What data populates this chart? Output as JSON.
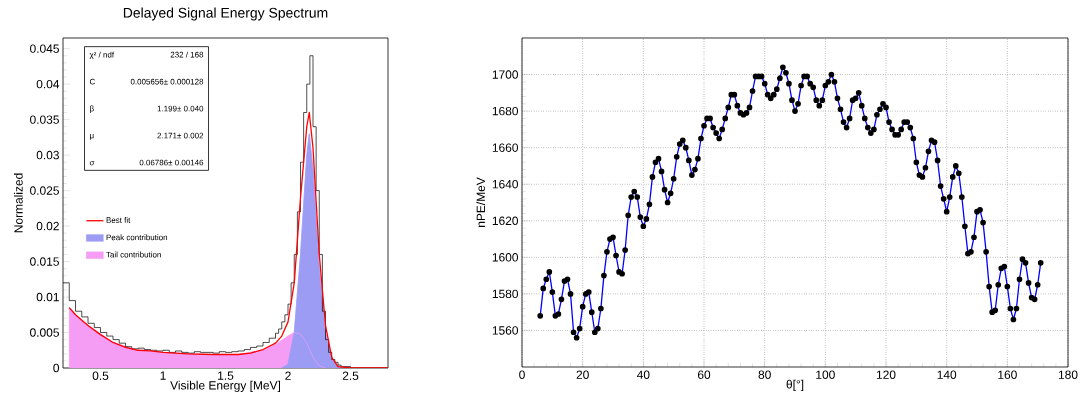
{
  "chart_data": [
    {
      "type": "line",
      "title": "Delayed Signal Energy Spectrum",
      "xlabel": "Visible Energy [MeV]",
      "ylabel": "Normalized",
      "xlim": [
        0.2,
        2.8
      ],
      "ylim": [
        0,
        0.0465
      ],
      "xticks": [
        0.5,
        1,
        1.5,
        2,
        2.5
      ],
      "yticks": [
        0,
        0.005,
        0.01,
        0.015,
        0.02,
        0.025,
        0.03,
        0.035,
        0.04,
        0.045
      ],
      "legend": "left",
      "grid": false,
      "annotations": [
        "χ² / ndf",
        "232 / 168",
        "C",
        "0.005656± 0.000128",
        "β",
        "1.199± 0.040",
        "μ",
        "2.171± 0.002",
        "σ",
        "0.06786± 0.00146"
      ],
      "series": [
        {
          "type": "area",
          "name": "Tail contribution",
          "color": "#f59cf5",
          "x": [
            0.25,
            0.3,
            0.4,
            0.6,
            0.8,
            1.0,
            1.2,
            1.4,
            1.6,
            1.8,
            1.9,
            2.0,
            2.05,
            2.1,
            2.15,
            2.2,
            2.25,
            2.3
          ],
          "values": [
            0.0085,
            0.0075,
            0.006,
            0.0036,
            0.0025,
            0.0022,
            0.002,
            0.0019,
            0.0019,
            0.0025,
            0.0033,
            0.0045,
            0.005,
            0.0048,
            0.0035,
            0.0015,
            0.0003,
            0
          ]
        },
        {
          "type": "area",
          "name": "Peak contribution",
          "color": "#9c9cf5",
          "x": [
            1.95,
            2.0,
            2.05,
            2.1,
            2.15,
            2.17,
            2.2,
            2.25,
            2.3,
            2.35,
            2.4,
            2.45
          ],
          "values": [
            0,
            0.0005,
            0.005,
            0.016,
            0.03,
            0.033,
            0.028,
            0.014,
            0.005,
            0.0012,
            0.0002,
            0
          ]
        },
        {
          "type": "histogram",
          "color": "#000000",
          "bins": [
            0.2,
            0.25,
            0.3,
            0.35,
            0.4,
            0.45,
            0.5,
            0.55,
            0.6,
            0.65,
            0.7,
            0.75,
            0.8,
            0.85,
            0.9,
            0.95,
            1,
            1.05,
            1.1,
            1.15,
            1.2,
            1.25,
            1.3,
            1.35,
            1.4,
            1.45,
            1.5,
            1.55,
            1.6,
            1.65,
            1.7,
            1.75,
            1.8,
            1.85,
            1.9,
            1.925,
            1.95,
            1.975,
            2,
            2.025,
            2.05,
            2.075,
            2.1,
            2.125,
            2.15,
            2.175,
            2.2,
            2.225,
            2.25,
            2.275,
            2.3,
            2.325,
            2.35,
            2.375,
            2.4,
            2.425,
            2.45,
            2.5,
            2.55,
            2.6,
            2.65,
            2.7,
            2.75,
            2.8
          ],
          "values": [
            0.012,
            0.0095,
            0.008,
            0.0072,
            0.0063,
            0.0057,
            0.005,
            0.0045,
            0.004,
            0.0035,
            0.003,
            0.0027,
            0.0028,
            0.0026,
            0.0025,
            0.0024,
            0.0025,
            0.0022,
            0.0024,
            0.0022,
            0.0021,
            0.0023,
            0.0022,
            0.0022,
            0.0021,
            0.0023,
            0.0022,
            0.0023,
            0.0024,
            0.0026,
            0.0029,
            0.0031,
            0.0036,
            0.0042,
            0.0049,
            0.0055,
            0.0065,
            0.0075,
            0.009,
            0.012,
            0.016,
            0.022,
            0.029,
            0.036,
            0.04,
            0.044,
            0.034,
            0.025,
            0.016,
            0.008,
            0.004,
            0.0022,
            0.0012,
            0.0008,
            0.0004,
            0.0002,
            0.0002,
            0,
            0,
            0,
            0,
            0,
            0
          ]
        },
        {
          "type": "line",
          "name": "Best fit",
          "color": "#ff0000",
          "x": [
            0.25,
            0.3,
            0.4,
            0.5,
            0.6,
            0.7,
            0.8,
            0.9,
            1.0,
            1.2,
            1.4,
            1.6,
            1.7,
            1.8,
            1.9,
            1.95,
            2.0,
            2.05,
            2.1,
            2.15,
            2.17,
            2.2,
            2.25,
            2.3,
            2.35,
            2.4,
            2.5,
            2.8
          ],
          "values": [
            0.0085,
            0.0075,
            0.006,
            0.0047,
            0.0036,
            0.0029,
            0.0025,
            0.0024,
            0.0022,
            0.002,
            0.0019,
            0.0019,
            0.0021,
            0.0026,
            0.0035,
            0.0045,
            0.0065,
            0.012,
            0.024,
            0.034,
            0.036,
            0.031,
            0.016,
            0.006,
            0.0015,
            0.0002,
            0,
            0
          ]
        }
      ]
    },
    {
      "type": "line",
      "xlabel": "θ[°]",
      "ylabel": "nPE/MeV",
      "xlim": [
        0,
        180
      ],
      "ylim": [
        1540,
        1720
      ],
      "xticks": [
        0,
        20,
        40,
        60,
        80,
        100,
        120,
        140,
        160,
        180
      ],
      "yticks": [
        1560,
        1580,
        1600,
        1620,
        1640,
        1660,
        1680,
        1700
      ],
      "grid": true,
      "marker": "circle",
      "color": "#0000ff",
      "x": [
        6,
        7,
        8,
        9,
        10,
        11,
        12,
        13,
        14,
        15,
        16,
        17,
        18,
        19,
        20,
        21,
        22,
        23,
        24,
        25,
        26,
        27,
        28,
        29,
        30,
        31,
        32,
        33,
        34,
        35,
        36,
        37,
        38,
        39,
        40,
        41,
        42,
        43,
        44,
        45,
        46,
        47,
        48,
        49,
        50,
        51,
        52,
        53,
        54,
        55,
        56,
        57,
        58,
        59,
        60,
        61,
        62,
        63,
        64,
        65,
        66,
        67,
        68,
        69,
        70,
        71,
        72,
        73,
        74,
        75,
        76,
        77,
        78,
        79,
        80,
        81,
        82,
        83,
        84,
        85,
        86,
        87,
        88,
        89,
        90,
        91,
        92,
        93,
        94,
        95,
        96,
        97,
        98,
        99,
        100,
        101,
        102,
        103,
        104,
        105,
        106,
        107,
        108,
        109,
        110,
        111,
        112,
        113,
        114,
        115,
        116,
        117,
        118,
        119,
        120,
        121,
        122,
        123,
        124,
        125,
        126,
        127,
        128,
        129,
        130,
        131,
        132,
        133,
        134,
        135,
        136,
        137,
        138,
        139,
        140,
        141,
        142,
        143,
        144,
        145,
        146,
        147,
        148,
        149,
        150,
        151,
        152,
        153,
        154,
        155,
        156,
        157,
        158,
        159,
        160,
        161,
        162,
        163,
        164,
        165,
        166,
        167,
        168,
        169,
        170,
        171
      ],
      "values": [
        1568,
        1583,
        1588,
        1592,
        1581,
        1568,
        1569,
        1577,
        1587,
        1588,
        1580,
        1559,
        1556,
        1561,
        1573,
        1580,
        1581,
        1570,
        1559,
        1561,
        1572,
        1590,
        1603,
        1610,
        1611,
        1601,
        1592,
        1591,
        1604,
        1623,
        1633,
        1636,
        1633,
        1622,
        1617,
        1621,
        1629,
        1644,
        1652,
        1654,
        1647,
        1637,
        1630,
        1635,
        1643,
        1655,
        1662,
        1664,
        1660,
        1653,
        1645,
        1648,
        1654,
        1665,
        1672,
        1676,
        1676,
        1671,
        1668,
        1665,
        1670,
        1676,
        1682,
        1689,
        1689,
        1683,
        1679,
        1678,
        1679,
        1682,
        1691,
        1699,
        1699,
        1699,
        1695,
        1689,
        1687,
        1689,
        1692,
        1698,
        1704,
        1701,
        1695,
        1686,
        1680,
        1684,
        1694,
        1699,
        1699,
        1695,
        1693,
        1686,
        1683,
        1686,
        1694,
        1696,
        1700,
        1696,
        1687,
        1681,
        1674,
        1671,
        1676,
        1686,
        1687,
        1690,
        1683,
        1676,
        1671,
        1668,
        1670,
        1678,
        1681,
        1684,
        1682,
        1674,
        1670,
        1667,
        1667,
        1670,
        1674,
        1674,
        1671,
        1665,
        1652,
        1645,
        1644,
        1649,
        1658,
        1664,
        1663,
        1653,
        1639,
        1632,
        1625,
        1633,
        1644,
        1650,
        1646,
        1633,
        1617,
        1602,
        1603,
        1611,
        1625,
        1626,
        1619,
        1603,
        1584,
        1570,
        1571,
        1585,
        1594,
        1595,
        1584,
        1572,
        1566,
        1572,
        1588,
        1599,
        1597,
        1586,
        1578,
        1577,
        1585,
        1597
      ]
    }
  ]
}
